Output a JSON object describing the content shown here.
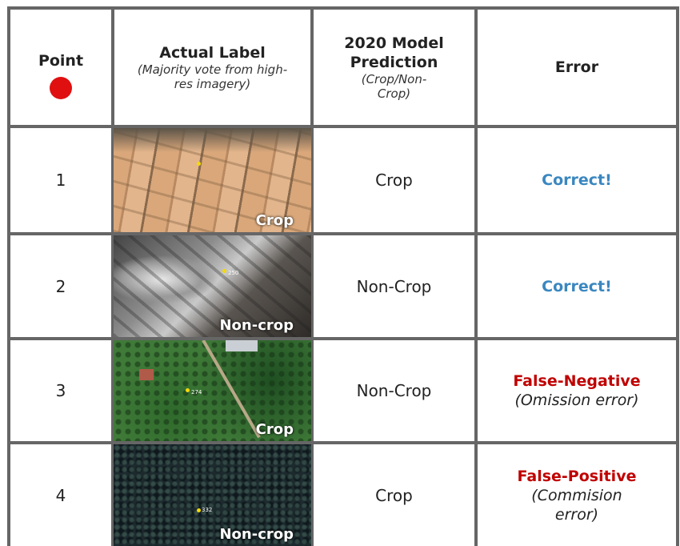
{
  "table": {
    "header": {
      "point": "Point",
      "actual_label": "Actual Label",
      "actual_label_note": "(Majority vote from high-res imagery)",
      "prediction": "2020 Model Prediction",
      "prediction_note": "(Crop/Non-Crop)",
      "error": "Error"
    },
    "rows": [
      {
        "point": "1",
        "image_label": "Crop",
        "prediction": "Crop",
        "error": "Correct!"
      },
      {
        "point": "2",
        "image_label": "Non-crop",
        "image_marker": "250",
        "prediction": "Non-Crop",
        "error": "Correct!"
      },
      {
        "point": "3",
        "image_label": "Crop",
        "image_marker": "274",
        "prediction": "Non-Crop",
        "error": "False-Negative",
        "error_note": "(Omission error)"
      },
      {
        "point": "4",
        "image_label": "Non-crop",
        "image_marker": "332",
        "prediction": "Crop",
        "error": "False-Positive",
        "error_note": "(Commision error)"
      }
    ]
  }
}
